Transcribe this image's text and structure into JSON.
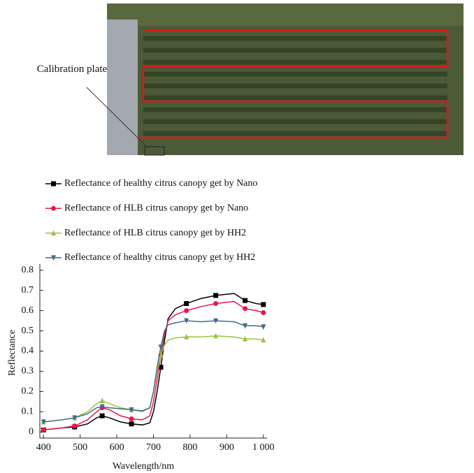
{
  "figure": {
    "photo_label": "Calibration plate"
  },
  "chart_data": {
    "type": "line",
    "xlabel": "Wavelength/nm",
    "ylabel": "Reflectance",
    "x": [
      400,
      450,
      485,
      520,
      545,
      560,
      580,
      610,
      640,
      670,
      690,
      700,
      710,
      720,
      730,
      740,
      760,
      790,
      830,
      870,
      920,
      950,
      980,
      1000
    ],
    "series": [
      {
        "name": "Reflectance of healthy citrus canopy get by Nano",
        "color": "#000000",
        "marker": "square",
        "values": [
          0.01,
          0.02,
          0.025,
          0.04,
          0.07,
          0.08,
          0.07,
          0.05,
          0.04,
          0.035,
          0.045,
          0.1,
          0.2,
          0.32,
          0.45,
          0.56,
          0.61,
          0.635,
          0.66,
          0.675,
          0.685,
          0.65,
          0.635,
          0.63
        ]
      },
      {
        "name": "Reflectance of HLB citrus canopy get by Nano",
        "color": "#e8174a",
        "marker": "circle",
        "values": [
          0.01,
          0.02,
          0.03,
          0.06,
          0.1,
          0.12,
          0.11,
          0.08,
          0.065,
          0.06,
          0.08,
          0.15,
          0.26,
          0.38,
          0.48,
          0.55,
          0.58,
          0.6,
          0.62,
          0.635,
          0.645,
          0.61,
          0.6,
          0.59
        ]
      },
      {
        "name": "Reflectance of HLB citrus canopy get by HH2",
        "color": "#9bc23c",
        "marker": "triangle-up",
        "values": [
          0.05,
          0.06,
          0.07,
          0.1,
          0.14,
          0.155,
          0.14,
          0.12,
          0.11,
          0.1,
          0.12,
          0.2,
          0.3,
          0.38,
          0.43,
          0.455,
          0.465,
          0.47,
          0.47,
          0.475,
          0.47,
          0.46,
          0.46,
          0.455
        ]
      },
      {
        "name": "Reflectance of healthy citrus canopy get by HH2",
        "color": "#3f6d8a",
        "marker": "triangle-down",
        "values": [
          0.05,
          0.06,
          0.07,
          0.09,
          0.12,
          0.125,
          0.12,
          0.115,
          0.11,
          0.105,
          0.12,
          0.2,
          0.32,
          0.42,
          0.5,
          0.53,
          0.54,
          0.55,
          0.545,
          0.55,
          0.545,
          0.525,
          0.525,
          0.52
        ]
      }
    ],
    "xlim": [
      390,
      1010
    ],
    "xticks": [
      400,
      500,
      600,
      700,
      800,
      900,
      {
        "value": 1000,
        "label": "1 000"
      }
    ],
    "ylim": [
      -0.03,
      0.83
    ],
    "yticks": [
      0,
      0.1,
      0.2,
      0.3,
      0.4,
      0.5,
      0.6,
      0.7,
      0.8
    ],
    "legend": "top"
  }
}
